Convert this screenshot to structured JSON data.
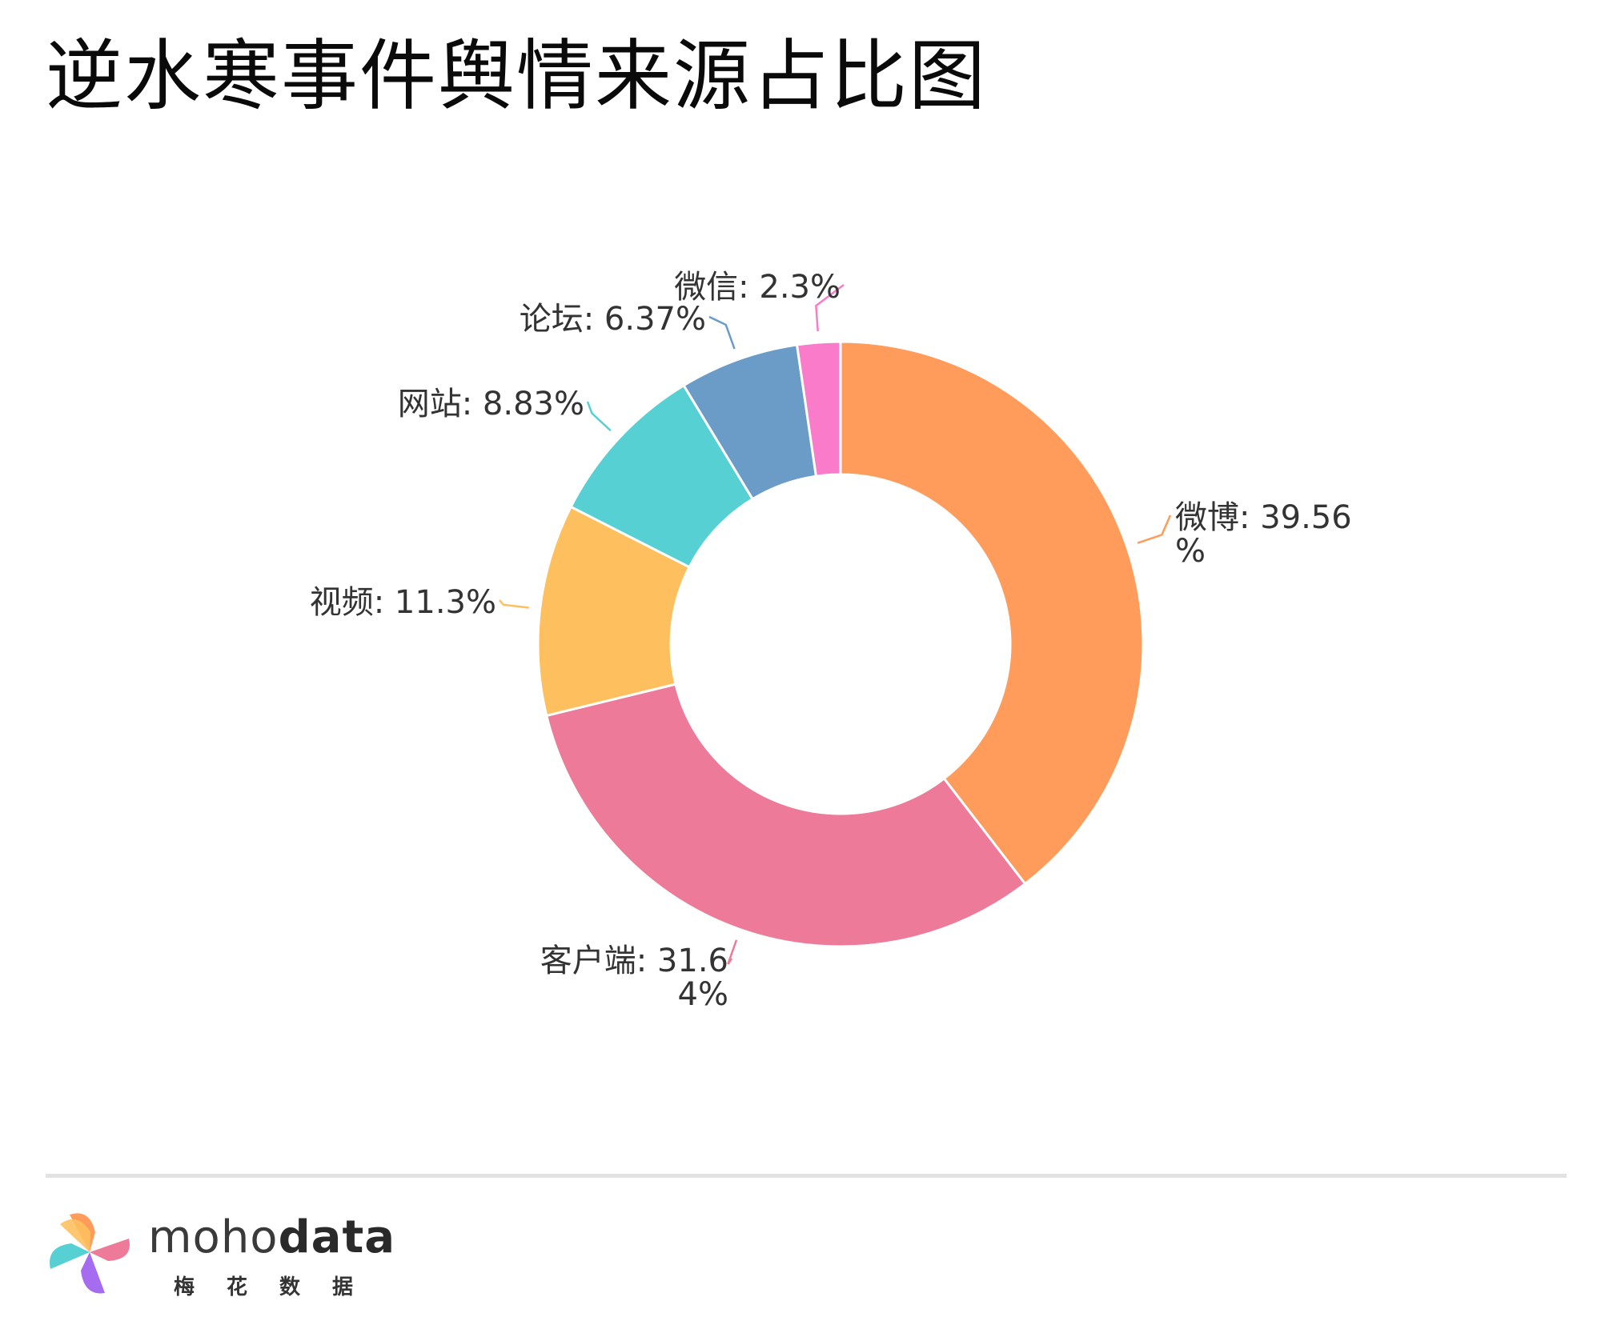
{
  "title": "逆水寒事件舆情来源占比图",
  "chart_data": {
    "type": "pie",
    "style": "donut",
    "title": "逆水寒事件舆情来源占比图",
    "slices": [
      {
        "name": "微博",
        "value": 39.56,
        "label_lines": [
          "微博: 39.56",
          "%"
        ],
        "color": "#ff9c5b"
      },
      {
        "name": "客户端",
        "value": 31.64,
        "label_lines": [
          "客户端: 31.6",
          "4%"
        ],
        "color": "#ec7a98"
      },
      {
        "name": "视频",
        "value": 11.3,
        "label_lines": [
          "视频: 11.3%"
        ],
        "color": "#fec05e"
      },
      {
        "name": "网站",
        "value": 8.83,
        "label_lines": [
          "网站: 8.83%"
        ],
        "color": "#56d0d3"
      },
      {
        "name": "论坛",
        "value": 6.37,
        "label_lines": [
          "论坛: 6.37%"
        ],
        "color": "#6b9cc7"
      },
      {
        "name": "微信",
        "value": 2.3,
        "label_lines": [
          "微信: 2.3%"
        ],
        "color": "#f97bca"
      }
    ],
    "legend": "none"
  },
  "footer": {
    "logo_word_light": "moho",
    "logo_word_bold": "data",
    "logo_sub": "梅花数据"
  }
}
